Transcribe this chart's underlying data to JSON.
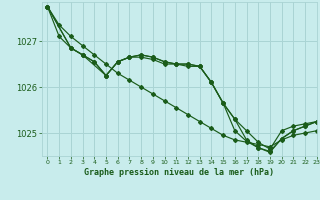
{
  "title": "Graphe pression niveau de la mer (hPa)",
  "bg_color": "#c8ecec",
  "grid_color": "#aad4d4",
  "line_color": "#1a5c1a",
  "xlim": [
    -0.5,
    23
  ],
  "ylim": [
    1024.5,
    1027.85
  ],
  "yticks": [
    1025,
    1026,
    1027
  ],
  "xticks": [
    0,
    1,
    2,
    3,
    4,
    5,
    6,
    7,
    8,
    9,
    10,
    11,
    12,
    13,
    14,
    15,
    16,
    17,
    18,
    19,
    20,
    21,
    22,
    23
  ],
  "series": [
    {
      "x": [
        0,
        1,
        2,
        3,
        4,
        5,
        6,
        7,
        8,
        9,
        10,
        11,
        12,
        13,
        14,
        15,
        16,
        17,
        18,
        19,
        20,
        21,
        22,
        23
      ],
      "y": [
        1027.75,
        1027.35,
        1027.1,
        1026.9,
        1026.7,
        1026.5,
        1026.3,
        1026.15,
        1026.0,
        1025.85,
        1025.7,
        1025.55,
        1025.4,
        1025.25,
        1025.1,
        1024.95,
        1024.85,
        1024.8,
        1024.75,
        1024.7,
        1024.85,
        1024.95,
        1025.0,
        1025.05
      ]
    },
    {
      "x": [
        0,
        1,
        2,
        3,
        4,
        5,
        6,
        7,
        8,
        9,
        10,
        11,
        12,
        13,
        14,
        15,
        16,
        17,
        18,
        19,
        20,
        21,
        22,
        23
      ],
      "y": [
        1027.75,
        1027.1,
        1026.85,
        1026.7,
        1026.55,
        1026.25,
        1026.55,
        1026.65,
        1026.65,
        1026.6,
        1026.5,
        1026.5,
        1026.45,
        1026.45,
        1026.1,
        1025.65,
        1025.3,
        1025.05,
        1024.8,
        1024.65,
        1025.05,
        1025.15,
        1025.2,
        1025.25
      ]
    },
    {
      "x": [
        0,
        2,
        3,
        4,
        5,
        6,
        7,
        8,
        9,
        10,
        11,
        12,
        13,
        14,
        15,
        16,
        17,
        18,
        19,
        20,
        21,
        22,
        23
      ],
      "y": [
        1027.75,
        1026.85,
        1026.7,
        1026.55,
        1026.25,
        1026.55,
        1026.65,
        1026.7,
        1026.65,
        1026.55,
        1026.5,
        1026.5,
        1026.45,
        1026.1,
        1025.65,
        1025.3,
        1024.85,
        1024.68,
        1024.6,
        1024.88,
        1025.05,
        1025.15,
        1025.25
      ]
    },
    {
      "x": [
        0,
        2,
        3,
        5,
        6,
        7,
        8,
        9,
        10,
        11,
        12,
        13,
        14,
        15,
        16,
        17,
        18,
        19,
        20,
        21,
        22,
        23
      ],
      "y": [
        1027.75,
        1026.85,
        1026.7,
        1026.25,
        1026.55,
        1026.65,
        1026.7,
        1026.65,
        1026.55,
        1026.5,
        1026.5,
        1026.45,
        1026.1,
        1025.65,
        1025.05,
        1024.82,
        1024.68,
        1024.58,
        1024.88,
        1025.05,
        1025.15,
        1025.25
      ]
    }
  ],
  "ytick_fontsize": 6,
  "xtick_fontsize": 4.5,
  "title_fontsize": 6
}
